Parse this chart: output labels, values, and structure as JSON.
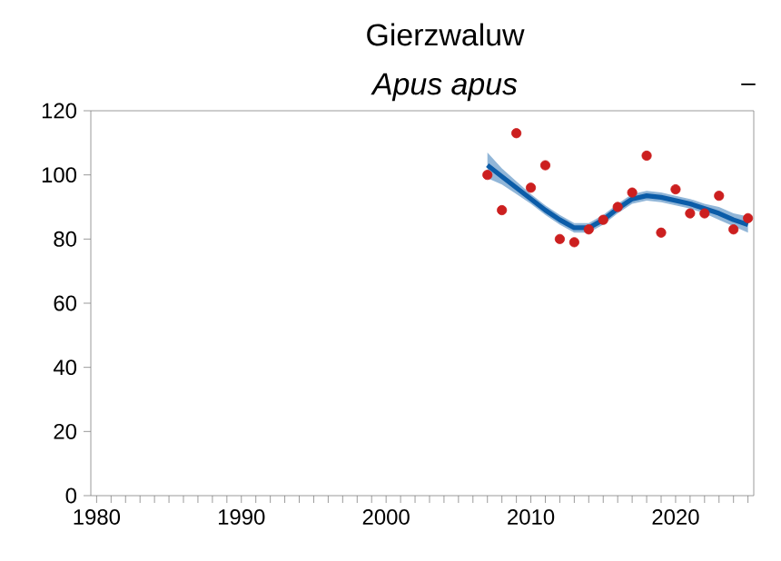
{
  "chart_data": {
    "type": "scatter",
    "title": "Gierzwaluw",
    "subtitle": "Apus apus",
    "annotations": [
      "–"
    ],
    "series": [
      {
        "color": "#cc1f1f",
        "marker": "circle",
        "x": [
          2007,
          2008,
          2009,
          2010,
          2011,
          2012,
          2013,
          2014,
          2015,
          2016,
          2017,
          2018,
          2019,
          2020,
          2021,
          2022,
          2023,
          2024,
          2025
        ],
        "values": [
          100,
          89,
          113,
          96,
          103,
          80,
          79,
          83,
          86,
          90,
          94.5,
          106,
          82,
          95.5,
          88,
          88,
          93.5,
          83,
          86.5
        ]
      },
      {
        "type": "line",
        "marker": "none",
        "color": "#0b5ca8",
        "x": [
          2007,
          2008,
          2009,
          2010,
          2011,
          2012,
          2013,
          2014,
          2015,
          2016,
          2017,
          2018,
          2019,
          2020,
          2021,
          2022,
          2023,
          2024,
          2025
        ],
        "values": [
          103,
          99.5,
          96,
          92.5,
          89,
          86,
          83.5,
          83.5,
          86,
          89.5,
          92.5,
          93.5,
          93,
          92,
          91,
          89.5,
          88,
          86,
          84.5
        ],
        "lower": [
          99,
          97,
          94,
          91,
          87.5,
          84.5,
          82,
          82,
          84.5,
          88,
          91,
          92,
          91.5,
          90.5,
          89.5,
          88,
          86,
          84,
          82
        ],
        "upper": [
          107,
          102,
          98,
          94,
          90.5,
          87.5,
          85,
          85,
          87.5,
          91,
          94,
          95,
          94.5,
          93.5,
          92.5,
          91,
          90,
          88,
          87
        ]
      }
    ],
    "xlim": [
      1979.6,
      2025.4
    ],
    "ylim": [
      0,
      120
    ],
    "yticks": [
      0,
      20,
      40,
      60,
      80,
      100,
      120
    ],
    "xticks": [
      1980,
      {
        "value": 1981,
        "label": null
      },
      {
        "value": 1982,
        "label": null
      },
      {
        "value": 1983,
        "label": null
      },
      {
        "value": 1984,
        "label": null
      },
      {
        "value": 1985,
        "label": null
      },
      {
        "value": 1986,
        "label": null
      },
      {
        "value": 1987,
        "label": null
      },
      {
        "value": 1988,
        "label": null
      },
      {
        "value": 1989,
        "label": null
      },
      1990,
      {
        "value": 1991,
        "label": null
      },
      {
        "value": 1992,
        "label": null
      },
      {
        "value": 1993,
        "label": null
      },
      {
        "value": 1994,
        "label": null
      },
      {
        "value": 1995,
        "label": null
      },
      {
        "value": 1996,
        "label": null
      },
      {
        "value": 1997,
        "label": null
      },
      {
        "value": 1998,
        "label": null
      },
      {
        "value": 1999,
        "label": null
      },
      2000,
      {
        "value": 2001,
        "label": null
      },
      {
        "value": 2002,
        "label": null
      },
      {
        "value": 2003,
        "label": null
      },
      {
        "value": 2004,
        "label": null
      },
      {
        "value": 2005,
        "label": null
      },
      {
        "value": 2006,
        "label": null
      },
      {
        "value": 2007,
        "label": null
      },
      {
        "value": 2008,
        "label": null
      },
      {
        "value": 2009,
        "label": null
      },
      2010,
      {
        "value": 2011,
        "label": null
      },
      {
        "value": 2012,
        "label": null
      },
      {
        "value": 2013,
        "label": null
      },
      {
        "value": 2014,
        "label": null
      },
      {
        "value": 2015,
        "label": null
      },
      {
        "value": 2016,
        "label": null
      },
      {
        "value": 2017,
        "label": null
      },
      {
        "value": 2018,
        "label": null
      },
      {
        "value": 2019,
        "label": null
      },
      2020,
      {
        "value": 2021,
        "label": null
      },
      {
        "value": 2022,
        "label": null
      },
      {
        "value": 2023,
        "label": null
      },
      {
        "value": 2024,
        "label": null
      },
      {
        "value": 2025,
        "label": null
      }
    ]
  }
}
